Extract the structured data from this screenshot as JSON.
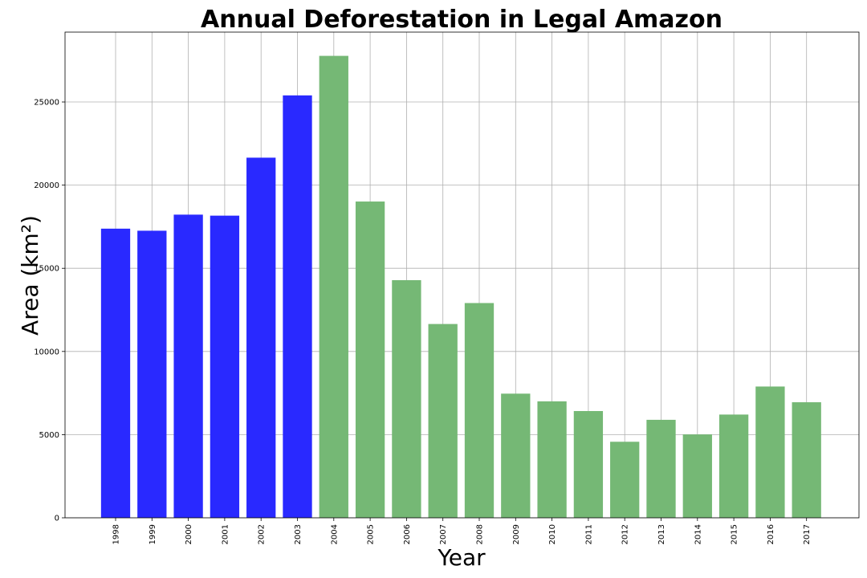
{
  "chart_data": {
    "type": "bar",
    "title": "Annual Deforestation in Legal Amazon",
    "xlabel": "Year",
    "ylabel": "Area (km²)",
    "categories": [
      "1998",
      "1999",
      "2000",
      "2001",
      "2002",
      "2003",
      "2004",
      "2005",
      "2006",
      "2007",
      "2008",
      "2009",
      "2010",
      "2011",
      "2012",
      "2013",
      "2014",
      "2015",
      "2016",
      "2017"
    ],
    "values": [
      17383,
      17259,
      18226,
      18165,
      21651,
      25396,
      27772,
      19014,
      14286,
      11651,
      12911,
      7464,
      7000,
      6418,
      4571,
      5891,
      5012,
      6207,
      7893,
      6947
    ],
    "bar_colors": [
      "#2929ff",
      "#2929ff",
      "#2929ff",
      "#2929ff",
      "#2929ff",
      "#2929ff",
      "#75b875",
      "#75b875",
      "#75b875",
      "#75b875",
      "#75b875",
      "#75b875",
      "#75b875",
      "#75b875",
      "#75b875",
      "#75b875",
      "#75b875",
      "#75b875",
      "#75b875",
      "#75b875"
    ],
    "ylim": [
      0,
      29200
    ],
    "yticks": [
      0,
      5000,
      10000,
      15000,
      20000,
      25000
    ],
    "ytick_labels": [
      "0",
      "5000",
      "10000",
      "15000",
      "20000",
      "25000"
    ],
    "grid": true
  }
}
